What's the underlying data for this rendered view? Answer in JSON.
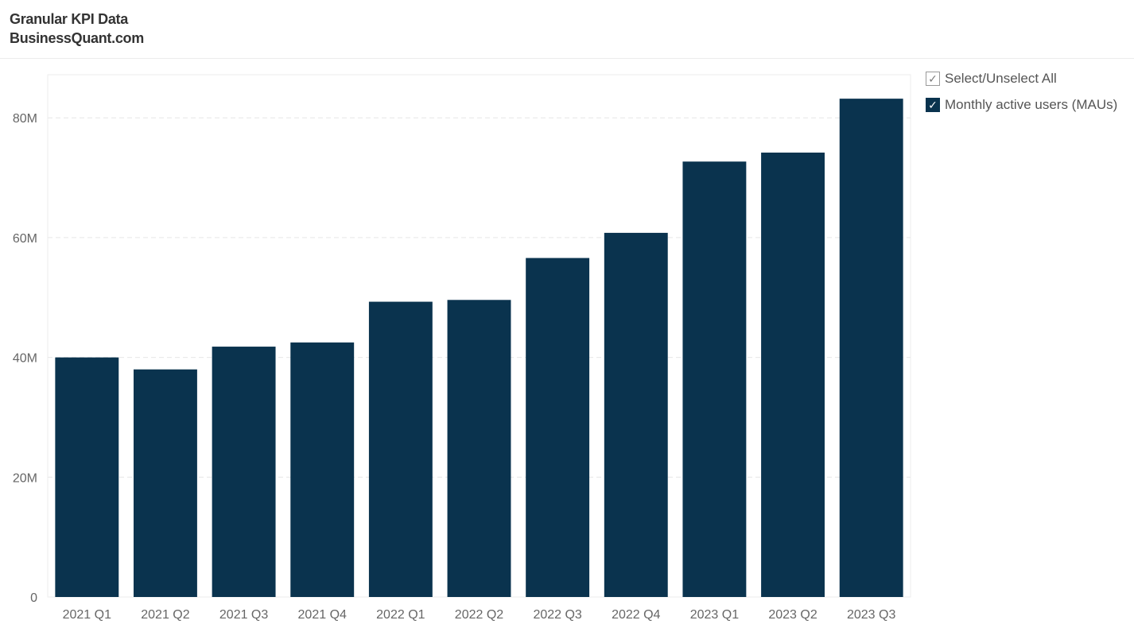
{
  "header": {
    "title": "Granular KPI Data",
    "subtitle": "BusinessQuant.com"
  },
  "legend": {
    "select_all_label": "Select/Unselect All",
    "series_label": "Monthly active users (MAUs)"
  },
  "colors": {
    "bar": "#0a334e",
    "grid": "#e6e6e6",
    "axis_text": "#666666"
  },
  "chart_data": {
    "type": "bar",
    "categories": [
      "2021 Q1",
      "2021 Q2",
      "2021 Q3",
      "2021 Q4",
      "2022 Q1",
      "2022 Q2",
      "2022 Q3",
      "2022 Q4",
      "2023 Q1",
      "2023 Q2",
      "2023 Q3"
    ],
    "series": [
      {
        "name": "Monthly active users (MAUs)",
        "values": [
          40000000,
          38000000,
          41800000,
          42500000,
          49300000,
          49600000,
          56600000,
          60800000,
          72700000,
          74200000,
          83200000
        ]
      }
    ],
    "yticks": [
      0,
      20000000,
      40000000,
      60000000,
      80000000
    ],
    "ytick_labels": [
      "0",
      "20M",
      "40M",
      "60M",
      "80M"
    ],
    "ylim": [
      0,
      87200000
    ],
    "grid": true,
    "legend_position": "right"
  }
}
